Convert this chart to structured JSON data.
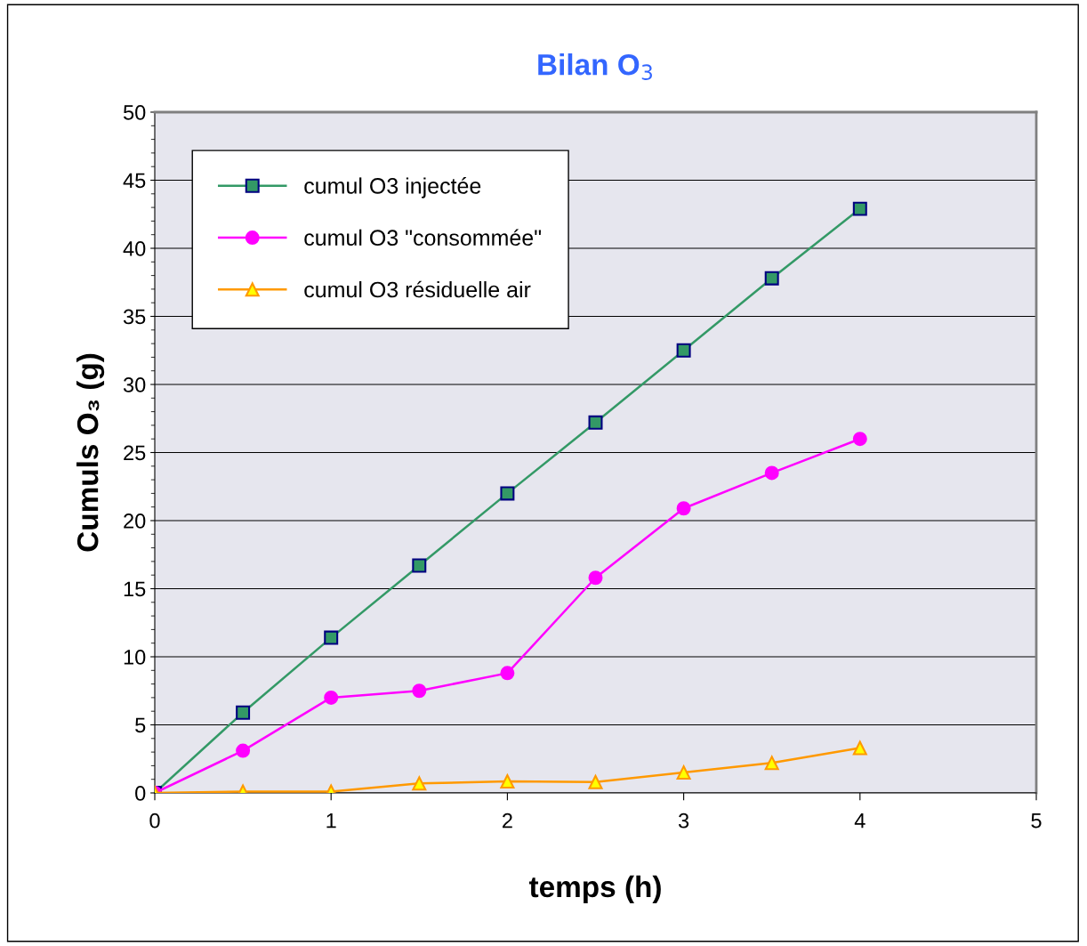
{
  "chart_data": {
    "type": "line",
    "title": "Bilan O$_{3}$",
    "xlabel": "temps (h)",
    "ylabel": "Cumuls O₃ (g)",
    "x": [
      0,
      0.5,
      1,
      1.5,
      2,
      2.5,
      3,
      3.5,
      4
    ],
    "series": [
      {
        "name": "cumul O3 injectée",
        "color": "#339966",
        "marker": "square",
        "values": [
          0,
          5.9,
          11.4,
          16.7,
          22.0,
          27.2,
          32.5,
          37.8,
          42.9
        ]
      },
      {
        "name": "cumul O3 \"consommée\"",
        "color": "#ff00ff",
        "marker": "circle",
        "values": [
          0,
          3.1,
          7.0,
          7.5,
          8.8,
          15.8,
          20.9,
          23.5,
          26.0
        ]
      },
      {
        "name": "cumul O3 résiduelle air",
        "color": "#ff9900",
        "marker": "triangle",
        "values": [
          0,
          0.1,
          0.1,
          0.7,
          0.85,
          0.8,
          1.5,
          2.2,
          3.3
        ]
      }
    ],
    "xlim": [
      0,
      5
    ],
    "xticks": [
      0,
      1,
      2,
      3,
      4,
      5
    ],
    "ylim": [
      0,
      50
    ],
    "yticks": [
      0,
      5,
      10,
      15,
      20,
      25,
      30,
      35,
      40,
      45,
      50
    ],
    "grid": "y",
    "legend": "top left"
  }
}
